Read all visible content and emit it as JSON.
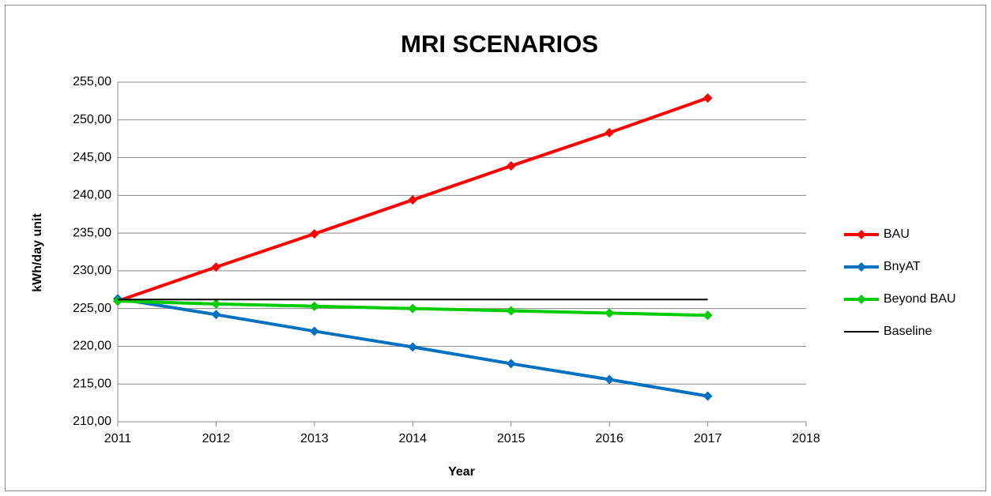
{
  "chart_data": {
    "type": "line",
    "title": "MRI SCENARIOS",
    "x_label": "Year",
    "y_label": "kWh/day unit",
    "x": [
      2011,
      2012,
      2013,
      2014,
      2015,
      2016,
      2017
    ],
    "series": [
      {
        "name": "BAU",
        "color": "#ff0000",
        "markers": true,
        "values": [
          226.0,
          230.5,
          234.9,
          239.4,
          243.9,
          248.3,
          252.9
        ]
      },
      {
        "name": "BnyAT",
        "color": "#0070c0",
        "markers": true,
        "values": [
          226.3,
          224.2,
          222.0,
          219.9,
          217.7,
          215.6,
          213.4
        ]
      },
      {
        "name": "Beyond BAU",
        "color": "#00cc00",
        "markers": true,
        "values": [
          226.0,
          225.6,
          225.3,
          225.0,
          224.7,
          224.4,
          224.1
        ]
      },
      {
        "name": "Baseline",
        "color": "#000000",
        "markers": false,
        "values": [
          226.2,
          226.2,
          226.2,
          226.2,
          226.2,
          226.2,
          226.2
        ]
      }
    ],
    "xlim": [
      2011,
      2018
    ],
    "xticks": [
      2011,
      2012,
      2013,
      2014,
      2015,
      2016,
      2017,
      2018
    ],
    "ylim": [
      210,
      255
    ],
    "yticks": [
      {
        "value": 210,
        "label": "210,00"
      },
      {
        "value": 215,
        "label": "215,00"
      },
      {
        "value": 220,
        "label": "220,00"
      },
      {
        "value": 225,
        "label": "225,00"
      },
      {
        "value": 230,
        "label": "230,00"
      },
      {
        "value": 235,
        "label": "235,00"
      },
      {
        "value": 240,
        "label": "240,00"
      },
      {
        "value": 245,
        "label": "245,00"
      },
      {
        "value": 250,
        "label": "250,00"
      },
      {
        "value": 255,
        "label": "255,00"
      }
    ],
    "grid": true,
    "legend": "right"
  }
}
